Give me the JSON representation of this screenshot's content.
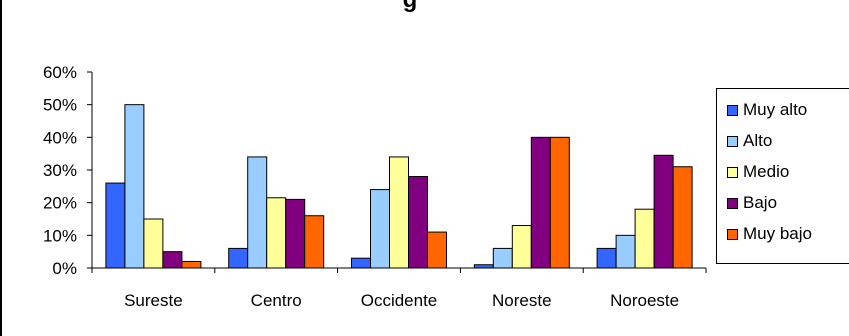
{
  "chart_data": {
    "type": "bar",
    "title": "g",
    "xlabel": "",
    "ylabel": "",
    "categories": [
      "Sureste",
      "Centro",
      "Occidente",
      "Noreste",
      "Noroeste"
    ],
    "ylim": [
      0,
      60
    ],
    "yticks": [
      "0%",
      "10%",
      "20%",
      "30%",
      "40%",
      "50%",
      "60%"
    ],
    "grid": false,
    "legend_position": "right",
    "series": [
      {
        "name": "Muy alto",
        "color": "#3366ff",
        "values": [
          26,
          6,
          3,
          1,
          6
        ]
      },
      {
        "name": "Alto",
        "color": "#99ccff",
        "values": [
          50,
          34,
          24,
          6,
          10
        ]
      },
      {
        "name": "Medio",
        "color": "#ffff99",
        "values": [
          15,
          21.5,
          34,
          13,
          18
        ]
      },
      {
        "name": "Bajo",
        "color": "#800080",
        "values": [
          5,
          21,
          28,
          40,
          34.5
        ]
      },
      {
        "name": "Muy bajo",
        "color": "#ff6600",
        "values": [
          2,
          16,
          11,
          40,
          31
        ]
      }
    ]
  }
}
